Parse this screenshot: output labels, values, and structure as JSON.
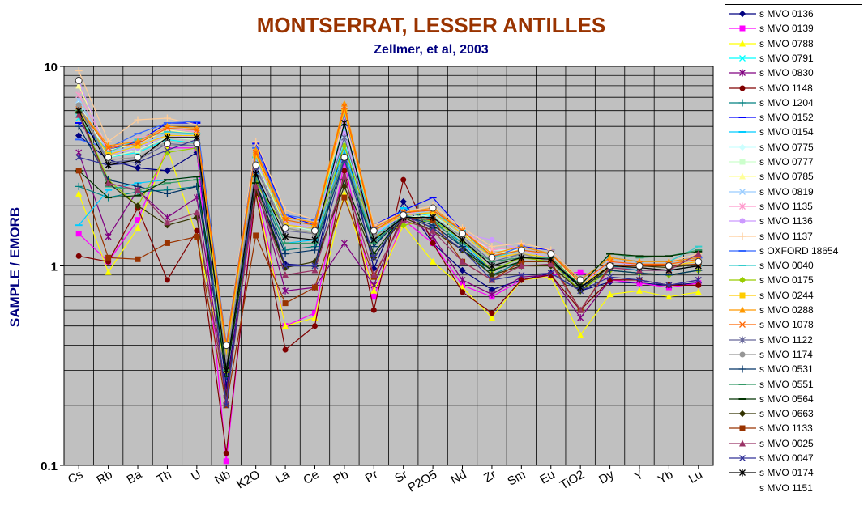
{
  "chart_data": {
    "type": "line",
    "title": "MONTSERRAT, LESSER ANTILLES",
    "subtitle": "Zellmer, et al, 2003",
    "xlabel": "",
    "ylabel": "SAMPLE / EMORB",
    "yscale": "log",
    "ylim": [
      0.1,
      10
    ],
    "yticks": [
      "0.1",
      "1",
      "10"
    ],
    "grid": true,
    "legend_position": "right",
    "plot_background": "#c0c0c0",
    "title_color": "#993300",
    "subtitle_color": "#000080",
    "ylabel_color": "#000080",
    "categories": [
      "Cs",
      "Rb",
      "Ba",
      "Th",
      "U",
      "Nb",
      "K2O",
      "La",
      "Ce",
      "Pb",
      "Pr",
      "Sr",
      "P2O5",
      "Nd",
      "Zr",
      "Sm",
      "Eu",
      "TiO2",
      "Dy",
      "Y",
      "Yb",
      "Lu"
    ],
    "series": [
      {
        "name": "s MVO 0136",
        "color": "#000080",
        "marker": "diamond",
        "values": [
          4.5,
          3.4,
          3.1,
          3.0,
          3.7,
          0.25,
          2.4,
          1.02,
          1.0,
          4.4,
          0.97,
          2.1,
          1.3,
          0.95,
          0.76,
          0.85,
          0.92,
          0.75,
          0.83,
          0.82,
          0.8,
          0.82
        ]
      },
      {
        "name": "s MVO 0139",
        "color": "#ff00ff",
        "marker": "square",
        "values": [
          1.45,
          1.05,
          1.7,
          3.9,
          3.9,
          0.105,
          2.5,
          0.5,
          0.58,
          3.3,
          0.7,
          1.7,
          1.3,
          0.8,
          0.7,
          0.85,
          0.9,
          0.93,
          0.85,
          0.82,
          0.78,
          0.82
        ]
      },
      {
        "name": "s MVO 0788",
        "color": "#ffff00",
        "marker": "triangle",
        "values": [
          2.3,
          0.93,
          1.55,
          3.9,
          1.4,
          0.3,
          2.3,
          0.5,
          0.55,
          2.3,
          0.75,
          1.6,
          1.05,
          0.78,
          0.55,
          0.85,
          0.88,
          0.45,
          0.72,
          0.75,
          0.7,
          0.74
        ]
      },
      {
        "name": "s MVO 0791",
        "color": "#00ffff",
        "marker": "x",
        "values": [
          5.5,
          3.5,
          3.7,
          4.3,
          4.1,
          0.35,
          3.3,
          1.6,
          1.5,
          4.2,
          1.4,
          1.85,
          1.8,
          1.4,
          1.0,
          1.15,
          1.1,
          0.8,
          1.05,
          1.0,
          1.0,
          1.05
        ]
      },
      {
        "name": "s MVO 0830",
        "color": "#800080",
        "marker": "star",
        "values": [
          3.7,
          1.4,
          2.4,
          1.75,
          2.2,
          0.23,
          2.6,
          0.75,
          0.78,
          1.3,
          0.8,
          1.85,
          1.4,
          0.85,
          0.72,
          0.88,
          0.9,
          0.55,
          0.85,
          0.85,
          0.8,
          0.85
        ]
      },
      {
        "name": "s MVO 1148",
        "color": "#800000",
        "marker": "circle",
        "values": [
          1.12,
          1.05,
          1.95,
          0.85,
          1.5,
          0.115,
          2.3,
          0.38,
          0.5,
          3.0,
          0.6,
          2.7,
          1.3,
          0.74,
          0.58,
          0.85,
          0.9,
          0.6,
          0.85,
          0.85,
          0.8,
          0.8
        ]
      },
      {
        "name": "s MVO 1204",
        "color": "#008080",
        "marker": "plus",
        "values": [
          2.5,
          2.2,
          2.35,
          2.4,
          2.5,
          0.3,
          2.8,
          1.2,
          1.25,
          3.6,
          1.25,
          1.9,
          1.7,
          1.25,
          0.9,
          1.05,
          1.05,
          0.75,
          0.95,
          0.92,
          0.9,
          0.95
        ]
      },
      {
        "name": "s MVO 0152",
        "color": "#0000ff",
        "marker": "dash",
        "values": [
          5.2,
          3.8,
          4.2,
          5.2,
          5.2,
          0.4,
          4.1,
          1.8,
          1.6,
          5.0,
          1.6,
          1.9,
          2.2,
          1.5,
          1.1,
          1.25,
          1.2,
          0.85,
          1.1,
          1.05,
          1.05,
          1.1
        ]
      },
      {
        "name": "s MVO 0154",
        "color": "#00ccff",
        "marker": "dash",
        "values": [
          1.6,
          2.4,
          2.6,
          2.7,
          2.8,
          0.3,
          2.9,
          1.3,
          1.35,
          3.8,
          1.3,
          1.95,
          1.75,
          1.3,
          0.95,
          1.1,
          1.1,
          0.8,
          1.0,
          0.95,
          0.95,
          1.0
        ]
      },
      {
        "name": "s MVO 0775",
        "color": "#ccffff",
        "marker": "diamond",
        "values": [
          6.5,
          3.6,
          3.9,
          4.5,
          4.4,
          0.36,
          3.4,
          1.65,
          1.55,
          4.5,
          1.45,
          1.8,
          1.85,
          1.45,
          1.2,
          1.2,
          1.1,
          0.8,
          1.05,
          1.0,
          1.0,
          1.05
        ]
      },
      {
        "name": "s MVO 0777",
        "color": "#ccffcc",
        "marker": "square",
        "values": [
          6.0,
          3.5,
          3.8,
          4.4,
          4.3,
          0.35,
          3.3,
          1.6,
          1.5,
          4.3,
          1.4,
          1.75,
          1.8,
          1.4,
          1.05,
          1.15,
          1.1,
          0.8,
          1.0,
          1.0,
          0.98,
          1.02
        ]
      },
      {
        "name": "s MVO 0785",
        "color": "#ffff99",
        "marker": "triangle",
        "values": [
          8.0,
          3.8,
          4.1,
          4.8,
          4.6,
          0.38,
          3.6,
          1.7,
          1.6,
          5.5,
          1.5,
          1.8,
          1.9,
          1.45,
          1.15,
          1.2,
          1.1,
          0.82,
          1.05,
          1.0,
          1.0,
          1.05
        ]
      },
      {
        "name": "s MVO 0819",
        "color": "#99ccff",
        "marker": "x",
        "values": [
          6.8,
          3.7,
          4.0,
          4.6,
          4.5,
          0.37,
          3.5,
          1.7,
          1.6,
          4.9,
          1.5,
          1.8,
          1.9,
          1.45,
          1.1,
          1.2,
          1.1,
          0.8,
          1.05,
          1.0,
          1.0,
          1.05
        ]
      },
      {
        "name": "s MVO 1135",
        "color": "#ff99cc",
        "marker": "star",
        "values": [
          7.2,
          3.9,
          4.3,
          4.9,
          4.7,
          0.39,
          3.7,
          1.75,
          1.65,
          5.6,
          1.55,
          1.8,
          1.95,
          1.5,
          1.2,
          1.25,
          1.15,
          0.82,
          1.05,
          1.02,
          1.0,
          1.05
        ]
      },
      {
        "name": "s MVO 1136",
        "color": "#cc99ff",
        "marker": "circle",
        "values": [
          8.5,
          3.6,
          3.9,
          4.5,
          4.4,
          0.37,
          3.4,
          1.65,
          1.55,
          4.6,
          1.45,
          1.8,
          1.85,
          1.45,
          1.35,
          1.2,
          1.1,
          0.8,
          1.05,
          1.0,
          1.0,
          1.05
        ]
      },
      {
        "name": "s MVO 1137",
        "color": "#ffcc99",
        "marker": "plus",
        "values": [
          9.5,
          4.2,
          5.4,
          5.5,
          5.1,
          0.42,
          4.2,
          1.9,
          1.7,
          6.2,
          1.6,
          1.85,
          2.0,
          1.55,
          1.25,
          1.3,
          1.2,
          0.85,
          1.1,
          1.05,
          1.05,
          1.15
        ]
      },
      {
        "name": "s OXFORD 18654",
        "color": "#3366ff",
        "marker": "dash",
        "values": [
          4.3,
          3.9,
          4.6,
          5.2,
          5.3,
          0.41,
          3.9,
          1.8,
          1.7,
          5.8,
          1.55,
          1.85,
          1.9,
          1.5,
          1.1,
          1.25,
          1.15,
          0.85,
          1.1,
          1.05,
          1.05,
          1.1
        ]
      },
      {
        "name": "s MVO 0040",
        "color": "#33cccc",
        "marker": "dash",
        "values": [
          5.8,
          3.7,
          4.3,
          4.7,
          4.6,
          0.38,
          3.5,
          1.7,
          1.6,
          5.1,
          1.5,
          1.8,
          1.85,
          1.5,
          1.1,
          1.2,
          1.15,
          0.85,
          1.1,
          1.05,
          1.05,
          1.25
        ]
      },
      {
        "name": "s MVO 0175",
        "color": "#99cc00",
        "marker": "diamond",
        "values": [
          5.9,
          2.7,
          2.0,
          3.7,
          3.9,
          0.3,
          2.6,
          1.55,
          1.45,
          4.0,
          1.4,
          1.6,
          1.7,
          1.35,
          0.95,
          1.1,
          1.05,
          0.75,
          0.95,
          0.92,
          0.9,
          0.95
        ]
      },
      {
        "name": "s MVO 0244",
        "color": "#ffcc00",
        "marker": "square",
        "values": [
          6.0,
          3.6,
          4.0,
          4.5,
          4.5,
          0.36,
          3.6,
          1.6,
          1.55,
          6.0,
          1.5,
          1.8,
          1.85,
          1.45,
          1.1,
          1.15,
          1.1,
          0.8,
          1.0,
          1.0,
          1.0,
          1.05
        ]
      },
      {
        "name": "s MVO 0288",
        "color": "#ff9900",
        "marker": "triangle",
        "values": [
          6.2,
          4.0,
          4.2,
          5.0,
          4.9,
          0.4,
          3.8,
          1.75,
          1.65,
          6.5,
          1.55,
          1.85,
          1.95,
          1.5,
          1.15,
          1.25,
          1.15,
          0.85,
          1.1,
          1.05,
          1.05,
          1.1
        ]
      },
      {
        "name": "s MVO 1078",
        "color": "#ff6600",
        "marker": "x",
        "values": [
          6.1,
          3.9,
          4.1,
          4.9,
          4.8,
          0.39,
          3.7,
          1.7,
          1.6,
          6.3,
          1.5,
          1.85,
          1.9,
          1.5,
          1.12,
          1.2,
          1.15,
          0.82,
          1.05,
          1.02,
          1.02,
          1.08
        ]
      },
      {
        "name": "s MVO 1122",
        "color": "#666699",
        "marker": "star",
        "values": [
          6.3,
          3.3,
          3.4,
          4.1,
          4.0,
          0.33,
          3.1,
          1.5,
          1.45,
          4.4,
          1.4,
          1.75,
          1.75,
          1.4,
          1.05,
          1.15,
          1.05,
          0.78,
          0.98,
          0.98,
          0.95,
          1.0
        ]
      },
      {
        "name": "s MVO 1174",
        "color": "#969696",
        "marker": "circle",
        "values": [
          6.4,
          3.4,
          3.5,
          4.2,
          4.1,
          0.34,
          3.2,
          1.55,
          1.45,
          3.5,
          1.4,
          1.75,
          1.75,
          1.4,
          1.0,
          1.15,
          1.05,
          0.78,
          0.98,
          0.98,
          0.95,
          1.0
        ]
      },
      {
        "name": "s MVO 0531",
        "color": "#003366",
        "marker": "plus",
        "values": [
          5.0,
          2.7,
          2.5,
          2.3,
          2.5,
          0.28,
          2.6,
          1.15,
          1.2,
          3.4,
          1.25,
          1.8,
          1.6,
          1.25,
          0.95,
          1.05,
          1.05,
          0.78,
          0.95,
          0.92,
          0.9,
          0.95
        ]
      },
      {
        "name": "s MVO 0551",
        "color": "#339966",
        "marker": "dash",
        "values": [
          6.0,
          2.5,
          2.4,
          2.6,
          2.7,
          0.3,
          2.8,
          1.3,
          1.3,
          3.5,
          1.3,
          1.8,
          1.65,
          1.3,
          1.05,
          1.1,
          1.1,
          0.8,
          1.15,
          1.1,
          1.12,
          1.2
        ]
      },
      {
        "name": "s MVO 0564",
        "color": "#003300",
        "marker": "dash",
        "values": [
          3.0,
          2.2,
          2.25,
          2.7,
          2.8,
          0.28,
          2.6,
          1.0,
          1.0,
          2.7,
          1.15,
          1.8,
          1.55,
          1.2,
          0.95,
          1.05,
          1.05,
          0.8,
          1.15,
          1.12,
          1.12,
          1.18
        ]
      },
      {
        "name": "s MVO 0663",
        "color": "#333300",
        "marker": "diamond",
        "values": [
          5.9,
          2.6,
          2.0,
          1.6,
          1.75,
          0.22,
          2.4,
          0.98,
          1.05,
          2.5,
          1.1,
          1.75,
          1.5,
          1.2,
          0.9,
          1.0,
          1.0,
          0.75,
          1.0,
          1.0,
          0.98,
          1.02
        ]
      },
      {
        "name": "s MVO 1133",
        "color": "#993300",
        "marker": "square",
        "values": [
          3.0,
          1.1,
          1.08,
          1.3,
          1.4,
          0.2,
          1.42,
          0.65,
          0.78,
          2.2,
          0.88,
          1.75,
          1.7,
          1.05,
          0.85,
          1.05,
          1.05,
          0.6,
          1.0,
          1.0,
          1.0,
          1.02
        ]
      },
      {
        "name": "s MVO 0025",
        "color": "#993366",
        "marker": "triangle",
        "values": [
          5.7,
          2.6,
          2.4,
          1.65,
          1.85,
          0.21,
          2.5,
          0.9,
          0.95,
          2.8,
          0.9,
          1.7,
          1.5,
          1.05,
          0.85,
          1.0,
          1.02,
          0.6,
          0.98,
          0.95,
          0.95,
          1.15
        ]
      },
      {
        "name": "s MVO 0047",
        "color": "#333399",
        "marker": "x",
        "values": [
          3.5,
          3.2,
          3.3,
          3.8,
          4.3,
          0.2,
          3.0,
          1.0,
          1.0,
          3.4,
          1.1,
          1.8,
          1.55,
          1.2,
          0.85,
          0.9,
          0.92,
          0.75,
          0.88,
          0.85,
          0.8,
          0.85
        ]
      },
      {
        "name": "s MVO 0174",
        "color": "#000000",
        "marker": "star",
        "values": [
          6.0,
          3.2,
          3.4,
          4.4,
          4.4,
          0.3,
          2.9,
          1.4,
          1.35,
          5.2,
          1.35,
          1.75,
          1.75,
          1.35,
          1.0,
          1.1,
          1.08,
          0.78,
          1.0,
          0.98,
          0.95,
          1.0
        ]
      },
      {
        "name": "s MVO 1151",
        "color": "#333333",
        "marker": "circle-open",
        "values": [
          8.5,
          3.5,
          3.5,
          4.1,
          4.1,
          0.4,
          3.2,
          1.55,
          1.5,
          3.5,
          1.5,
          1.8,
          1.95,
          1.45,
          1.1,
          1.2,
          1.15,
          0.85,
          1.0,
          1.0,
          1.0,
          1.05
        ]
      }
    ]
  }
}
